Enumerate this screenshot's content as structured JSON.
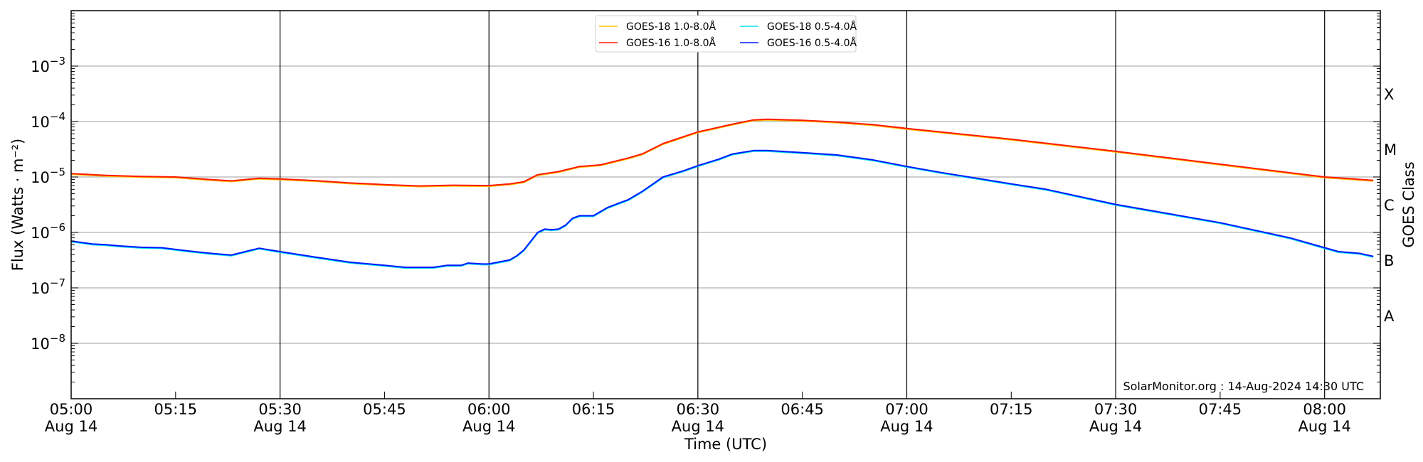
{
  "chart_data": {
    "type": "line",
    "title": "",
    "xlabel": "Time (UTC)",
    "ylabel": "Flux (Watts · m⁻²)",
    "ylabel_right": "GOES Class",
    "yscale": "log",
    "ylim": [
      1e-09,
      0.01
    ],
    "xlim": [
      "05:00",
      "08:08"
    ],
    "grid": true,
    "legend_placement": "top-center",
    "y_ticks": [
      {
        "value": 0.001,
        "base": "10",
        "exp": "−3"
      },
      {
        "value": 0.0001,
        "base": "10",
        "exp": "−4"
      },
      {
        "value": 1e-05,
        "base": "10",
        "exp": "−5"
      },
      {
        "value": 1e-06,
        "base": "10",
        "exp": "−6"
      },
      {
        "value": 1e-07,
        "base": "10",
        "exp": "−7"
      },
      {
        "value": 1e-08,
        "base": "10",
        "exp": "−8"
      }
    ],
    "x_ticks": [
      {
        "time": "05:00",
        "label": "05:00",
        "date": "Aug 14"
      },
      {
        "time": "05:15",
        "label": "05:15",
        "date": ""
      },
      {
        "time": "05:30",
        "label": "05:30",
        "date": "Aug 14"
      },
      {
        "time": "05:45",
        "label": "05:45",
        "date": ""
      },
      {
        "time": "06:00",
        "label": "06:00",
        "date": "Aug 14"
      },
      {
        "time": "06:15",
        "label": "06:15",
        "date": ""
      },
      {
        "time": "06:30",
        "label": "06:30",
        "date": "Aug 14"
      },
      {
        "time": "06:45",
        "label": "06:45",
        "date": ""
      },
      {
        "time": "07:00",
        "label": "07:00",
        "date": "Aug 14"
      },
      {
        "time": "07:15",
        "label": "07:15",
        "date": ""
      },
      {
        "time": "07:30",
        "label": "07:30",
        "date": "Aug 14"
      },
      {
        "time": "07:45",
        "label": "07:45",
        "date": ""
      },
      {
        "time": "08:00",
        "label": "08:00",
        "date": "Aug 14"
      }
    ],
    "goes_classes": [
      {
        "label": "X",
        "value": 0.000316
      },
      {
        "label": "M",
        "value": 3.16e-05
      },
      {
        "label": "C",
        "value": 3.16e-06
      },
      {
        "label": "B",
        "value": 3.16e-07
      },
      {
        "label": "A",
        "value": 3.16e-08
      }
    ],
    "series": [
      {
        "name": "GOES-18 1.0-8.0Å",
        "color": "#ffc000",
        "x": [
          "05:00",
          "05:05",
          "05:10",
          "05:15",
          "05:20",
          "05:23",
          "05:27",
          "05:30",
          "05:35",
          "05:40",
          "05:45",
          "05:50",
          "05:55",
          "06:00",
          "06:03",
          "06:05",
          "06:07",
          "06:10",
          "06:13",
          "06:16",
          "06:20",
          "06:22",
          "06:25",
          "06:30",
          "06:35",
          "06:38",
          "06:40",
          "06:45",
          "06:50",
          "06:55",
          "07:00",
          "07:15",
          "07:30",
          "07:45",
          "08:00",
          "08:07"
        ],
        "values": [
          1.15e-05,
          1.07e-05,
          1.02e-05,
          1e-05,
          9e-06,
          8.5e-06,
          9.5e-06,
          9.2e-06,
          8.6e-06,
          7.8e-06,
          7.3e-06,
          6.9e-06,
          7.1e-06,
          7e-06,
          7.5e-06,
          8.2e-06,
          1.1e-05,
          1.25e-05,
          1.55e-05,
          1.65e-05,
          2.2e-05,
          2.6e-05,
          4e-05,
          6.5e-05,
          9e-05,
          0.000107,
          0.00011,
          0.000105,
          9.8e-05,
          8.8e-05,
          7.5e-05,
          4.8e-05,
          2.9e-05,
          1.7e-05,
          1e-05,
          8.7e-06
        ]
      },
      {
        "name": "GOES-16 1.0-8.0Å",
        "color": "#ff1a00",
        "x": [
          "05:00",
          "05:05",
          "05:10",
          "05:15",
          "05:20",
          "05:23",
          "05:27",
          "05:30",
          "05:35",
          "05:40",
          "05:45",
          "05:50",
          "05:55",
          "06:00",
          "06:03",
          "06:05",
          "06:07",
          "06:10",
          "06:13",
          "06:16",
          "06:20",
          "06:22",
          "06:25",
          "06:30",
          "06:35",
          "06:38",
          "06:40",
          "06:45",
          "06:50",
          "06:55",
          "07:00",
          "07:15",
          "07:30",
          "07:45",
          "08:00",
          "08:07"
        ],
        "values": [
          1.15e-05,
          1.07e-05,
          1.02e-05,
          1e-05,
          9e-06,
          8.5e-06,
          9.5e-06,
          9.2e-06,
          8.6e-06,
          7.8e-06,
          7.3e-06,
          6.9e-06,
          7.1e-06,
          7e-06,
          7.5e-06,
          8.2e-06,
          1.1e-05,
          1.25e-05,
          1.55e-05,
          1.65e-05,
          2.2e-05,
          2.6e-05,
          4e-05,
          6.5e-05,
          9e-05,
          0.000107,
          0.00011,
          0.000105,
          9.8e-05,
          8.8e-05,
          7.5e-05,
          4.8e-05,
          2.9e-05,
          1.7e-05,
          1e-05,
          8.7e-06
        ]
      },
      {
        "name": "GOES-18 0.5-4.0Å",
        "color": "#00e5ee",
        "x": [
          "05:00",
          "05:03",
          "05:05",
          "05:07",
          "05:10",
          "05:13",
          "05:17",
          "05:20",
          "05:23",
          "05:25",
          "05:27",
          "05:30",
          "05:35",
          "05:40",
          "05:45",
          "05:48",
          "05:52",
          "05:54",
          "05:56",
          "05:57",
          "05:59",
          "06:00",
          "06:03",
          "06:04",
          "06:05",
          "06:07",
          "06:08",
          "06:09",
          "06:10",
          "06:11",
          "06:12",
          "06:13",
          "06:15",
          "06:17",
          "06:19",
          "06:20",
          "06:22",
          "06:25",
          "06:28",
          "06:30",
          "06:33",
          "06:35",
          "06:38",
          "06:40",
          "06:45",
          "06:50",
          "06:55",
          "07:00",
          "07:05",
          "07:10",
          "07:15",
          "07:20",
          "07:30",
          "07:45",
          "07:55",
          "08:00",
          "08:02",
          "08:05",
          "08:07"
        ],
        "values": [
          7e-07,
          6.2e-07,
          6e-07,
          5.7e-07,
          5.4e-07,
          5.3e-07,
          4.6e-07,
          4.2e-07,
          3.9e-07,
          4.5e-07,
          5.2e-07,
          4.5e-07,
          3.6e-07,
          2.9e-07,
          2.55e-07,
          2.35e-07,
          2.35e-07,
          2.55e-07,
          2.55e-07,
          2.8e-07,
          2.7e-07,
          2.7e-07,
          3.2e-07,
          3.8e-07,
          4.8e-07,
          1e-06,
          1.15e-06,
          1.12e-06,
          1.15e-06,
          1.35e-06,
          1.8e-06,
          2e-06,
          2e-06,
          2.8e-06,
          3.5e-06,
          3.9e-06,
          5.5e-06,
          1e-05,
          1.3e-05,
          1.6e-05,
          2.1e-05,
          2.6e-05,
          3e-05,
          3e-05,
          2.75e-05,
          2.5e-05,
          2.05e-05,
          1.55e-05,
          1.2e-05,
          9.5e-06,
          7.5e-06,
          6e-06,
          3.2e-06,
          1.5e-06,
          8e-07,
          5.3e-07,
          4.5e-07,
          4.2e-07,
          3.7e-07
        ]
      },
      {
        "name": "GOES-16 0.5-4.0Å",
        "color": "#0019ff",
        "x": [
          "05:00",
          "05:03",
          "05:05",
          "05:07",
          "05:10",
          "05:13",
          "05:17",
          "05:20",
          "05:23",
          "05:25",
          "05:27",
          "05:30",
          "05:35",
          "05:40",
          "05:45",
          "05:48",
          "05:52",
          "05:54",
          "05:56",
          "05:57",
          "05:59",
          "06:00",
          "06:03",
          "06:04",
          "06:05",
          "06:07",
          "06:08",
          "06:09",
          "06:10",
          "06:11",
          "06:12",
          "06:13",
          "06:15",
          "06:17",
          "06:19",
          "06:20",
          "06:22",
          "06:25",
          "06:28",
          "06:30",
          "06:33",
          "06:35",
          "06:38",
          "06:40",
          "06:45",
          "06:50",
          "06:55",
          "07:00",
          "07:05",
          "07:10",
          "07:15",
          "07:20",
          "07:30",
          "07:45",
          "07:55",
          "08:00",
          "08:02",
          "08:05",
          "08:07"
        ],
        "values": [
          7e-07,
          6.2e-07,
          6e-07,
          5.7e-07,
          5.4e-07,
          5.3e-07,
          4.6e-07,
          4.2e-07,
          3.9e-07,
          4.5e-07,
          5.2e-07,
          4.5e-07,
          3.6e-07,
          2.9e-07,
          2.55e-07,
          2.35e-07,
          2.35e-07,
          2.55e-07,
          2.55e-07,
          2.8e-07,
          2.7e-07,
          2.7e-07,
          3.2e-07,
          3.8e-07,
          4.8e-07,
          1e-06,
          1.15e-06,
          1.12e-06,
          1.15e-06,
          1.35e-06,
          1.8e-06,
          2e-06,
          2e-06,
          2.8e-06,
          3.5e-06,
          3.9e-06,
          5.5e-06,
          1e-05,
          1.3e-05,
          1.6e-05,
          2.1e-05,
          2.6e-05,
          3e-05,
          3e-05,
          2.75e-05,
          2.5e-05,
          2.05e-05,
          1.55e-05,
          1.2e-05,
          9.5e-06,
          7.5e-06,
          6e-06,
          3.2e-06,
          1.5e-06,
          8e-07,
          5.3e-07,
          4.5e-07,
          4.2e-07,
          3.7e-07
        ]
      }
    ],
    "annotation": "SolarMonitor.org : 14-Aug-2024 14:30 UTC"
  }
}
